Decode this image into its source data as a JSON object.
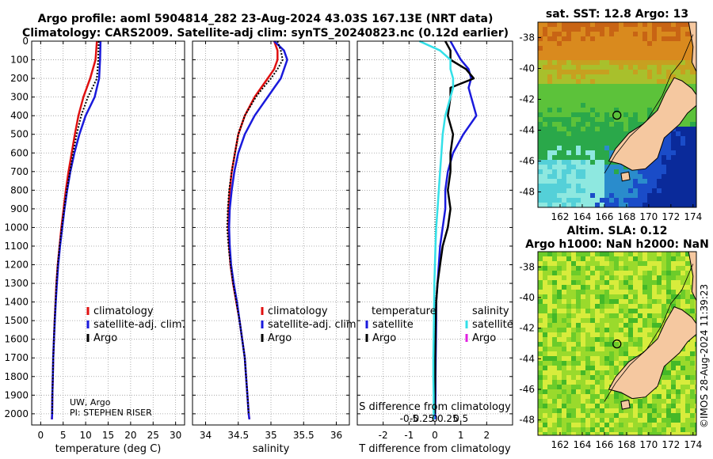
{
  "header": {
    "line1": "Argo profile: aoml 5904814_282 23-Aug-2024 43.03S 167.13E (NRT data)",
    "line2": "Climatology: CARS2009. Satellite-adj clim: synTS_20240823.nc (0.12d earlier)"
  },
  "stamp": "©IMOS 28-Aug-2024 11:39:23",
  "info": {
    "line1": "UW, Argo",
    "line2": "PI: STEPHEN RISER"
  },
  "colors": {
    "climatology": "#e01010",
    "satellite": "#1a1adc",
    "argo": "#000000",
    "sat_salinity": "#33e0e8",
    "argo_salinity": "#e020e0",
    "land": "#f5c8a0"
  },
  "chart_data": [
    {
      "type": "line",
      "name": "temperature",
      "xlabel": "temperature (deg C)",
      "ylabel": "",
      "xlim": [
        -2,
        32
      ],
      "ylim": [
        2060,
        0
      ],
      "xticks": [
        0,
        5,
        10,
        15,
        20,
        25,
        30
      ],
      "yticks": [
        0,
        100,
        200,
        300,
        400,
        500,
        600,
        700,
        800,
        900,
        1000,
        1100,
        1200,
        1300,
        1400,
        1500,
        1600,
        1700,
        1800,
        1900,
        2000
      ],
      "grid": true,
      "legend": {
        "placement": "lower-right",
        "entries": [
          "climatology",
          "satellite-adj. clim.",
          "Argo"
        ]
      },
      "series": [
        {
          "name": "climatology",
          "color": "#e01010",
          "width": 2.5,
          "dash": "",
          "depth": [
            0,
            100,
            200,
            300,
            400,
            500,
            600,
            700,
            800,
            900,
            1000,
            1100,
            1200,
            1300,
            1400,
            1500,
            1600,
            1700,
            1800,
            1900,
            2000,
            2030
          ],
          "values": [
            12.5,
            12.2,
            11.0,
            9.5,
            8.4,
            7.6,
            6.9,
            6.2,
            5.6,
            5.1,
            4.6,
            4.2,
            3.8,
            3.5,
            3.3,
            3.1,
            2.95,
            2.8,
            2.7,
            2.6,
            2.55,
            2.5
          ]
        },
        {
          "name": "satellite-adj. clim.",
          "color": "#1a1adc",
          "width": 2.5,
          "dash": "",
          "depth": [
            0,
            100,
            200,
            300,
            400,
            500,
            600,
            700,
            800,
            900,
            1000,
            1100,
            1200,
            1300,
            1400,
            1500,
            1600,
            1700,
            1800,
            1900,
            2000,
            2030
          ],
          "values": [
            13.3,
            13.2,
            13.0,
            12.0,
            10.0,
            8.6,
            7.5,
            6.6,
            5.9,
            5.3,
            4.8,
            4.3,
            3.9,
            3.6,
            3.35,
            3.15,
            2.95,
            2.8,
            2.7,
            2.6,
            2.55,
            2.5
          ]
        },
        {
          "name": "Argo",
          "color": "#000000",
          "width": 2,
          "dash": "2,2",
          "depth": [
            0,
            100,
            200,
            300,
            400,
            500,
            600,
            700,
            800,
            900,
            1000,
            1100,
            1200,
            1300,
            1400,
            1500,
            1600,
            1700,
            1800,
            1900,
            2000
          ],
          "values": [
            12.9,
            12.8,
            12.5,
            10.5,
            9.0,
            8.0,
            7.2,
            6.5,
            5.8,
            5.2,
            4.7,
            4.2,
            3.8,
            3.5,
            3.3,
            3.1,
            2.95,
            2.8,
            2.7,
            2.6,
            2.55
          ]
        }
      ]
    },
    {
      "type": "line",
      "name": "salinity",
      "xlabel": "salinity",
      "ylabel": "",
      "xlim": [
        33.8,
        36.2
      ],
      "ylim": [
        2060,
        0
      ],
      "xticks": [
        34,
        34.5,
        35,
        35.5,
        36
      ],
      "xticklabels": [
        "34",
        "34.5",
        "35",
        "35.5",
        "36"
      ],
      "grid": true,
      "legend": {
        "placement": "lower-right",
        "entries": [
          "climatology",
          "satellite-adj. clim.",
          "Argo"
        ]
      },
      "series": [
        {
          "name": "climatology",
          "color": "#e01010",
          "width": 2.5,
          "dash": "",
          "depth": [
            0,
            50,
            100,
            150,
            200,
            250,
            300,
            400,
            500,
            600,
            700,
            800,
            900,
            1000,
            1100,
            1200,
            1300,
            1400,
            1500,
            1600,
            1700,
            1800,
            1900,
            2000,
            2030
          ],
          "values": [
            35.05,
            35.1,
            35.1,
            35.05,
            34.95,
            34.85,
            34.75,
            34.6,
            34.5,
            34.45,
            34.4,
            34.37,
            34.35,
            34.35,
            34.36,
            34.38,
            34.42,
            34.47,
            34.52,
            34.56,
            34.6,
            34.62,
            34.64,
            34.66,
            34.67
          ]
        },
        {
          "name": "satellite-adj. clim.",
          "color": "#1a1adc",
          "width": 2.5,
          "dash": "",
          "depth": [
            0,
            50,
            100,
            150,
            200,
            250,
            300,
            400,
            500,
            600,
            700,
            800,
            900,
            1000,
            1100,
            1200,
            1300,
            1400,
            1500,
            1600,
            1700,
            1800,
            1900,
            2000,
            2030
          ],
          "values": [
            35.05,
            35.2,
            35.25,
            35.2,
            35.15,
            35.05,
            34.95,
            34.75,
            34.6,
            34.5,
            34.44,
            34.4,
            34.37,
            34.36,
            34.37,
            34.39,
            34.43,
            34.48,
            34.52,
            34.56,
            34.6,
            34.62,
            34.64,
            34.66,
            34.67
          ]
        },
        {
          "name": "Argo",
          "color": "#000000",
          "width": 2,
          "dash": "2,2",
          "depth": [
            0,
            50,
            100,
            150,
            200,
            250,
            300,
            400,
            500,
            600,
            700,
            800,
            900,
            1000,
            1100,
            1200,
            1300,
            1400,
            1500,
            1600,
            1700,
            1800,
            1900,
            2000
          ],
          "values": [
            35.1,
            35.15,
            35.18,
            35.1,
            35.0,
            34.88,
            34.77,
            34.6,
            34.5,
            34.45,
            34.4,
            34.36,
            34.34,
            34.33,
            34.35,
            34.38,
            34.42,
            34.47,
            34.52,
            34.56,
            34.6,
            34.62,
            34.64,
            34.66
          ]
        }
      ]
    },
    {
      "type": "line",
      "name": "difference",
      "xlabel": "T difference from climatology",
      "xlabel_top": "S difference from climatology",
      "xlim": [
        -3,
        3
      ],
      "ylim": [
        2060,
        0
      ],
      "xticks": [
        -2,
        -1,
        0,
        1,
        2
      ],
      "xticklabels": [
        "-2",
        "-1",
        "0",
        "1",
        "2"
      ],
      "sticks": [
        -1,
        -0.5,
        0,
        0.5,
        1
      ],
      "sticklabels": [
        "-0.5",
        "-0.25",
        "0",
        "0.25",
        "0.5"
      ],
      "grid": true,
      "legend_temperature": {
        "title": "temperature",
        "entries": [
          "satellite",
          "Argo"
        ]
      },
      "legend_salinity": {
        "title": "salinity",
        "entries": [
          "satellite",
          "Argo"
        ]
      },
      "series": [
        {
          "name": "T satellite",
          "color": "#1a1adc",
          "width": 2.5,
          "dash": "",
          "depth": [
            0,
            50,
            100,
            150,
            200,
            250,
            300,
            400,
            500,
            600,
            700,
            800,
            900,
            1000,
            1100,
            1200,
            1300,
            1400,
            1500,
            1600,
            1700,
            1800,
            1900,
            2000,
            2030
          ],
          "values": [
            0.6,
            0.8,
            1.0,
            1.3,
            1.4,
            1.3,
            1.4,
            1.6,
            1.1,
            0.7,
            0.5,
            0.4,
            0.4,
            0.3,
            0.2,
            0.15,
            0.1,
            0.05,
            0.05,
            0.04,
            0.03,
            0.02,
            0.02,
            0.01,
            0.0
          ]
        },
        {
          "name": "T Argo",
          "color": "#000000",
          "width": 2.5,
          "dash": "",
          "depth": [
            0,
            50,
            100,
            150,
            200,
            250,
            300,
            400,
            500,
            600,
            700,
            800,
            900,
            1000,
            1100,
            1200,
            1300,
            1400,
            1500,
            1600,
            1700,
            1800,
            1900,
            2000
          ],
          "values": [
            0.4,
            0.6,
            0.6,
            1.2,
            1.5,
            0.6,
            0.6,
            0.5,
            0.7,
            0.6,
            0.6,
            0.5,
            0.6,
            0.5,
            0.3,
            0.2,
            0.1,
            0.05,
            0.03,
            0.02,
            0.01,
            0.01,
            0.0,
            0.0
          ]
        },
        {
          "name": "S satellite",
          "color": "#33e0e8",
          "width": 2.5,
          "dash": "",
          "depth": [
            0,
            50,
            100,
            150,
            200,
            250,
            300,
            400,
            500,
            600,
            700,
            800,
            900,
            1000,
            1100,
            1200,
            1300,
            1400,
            1500,
            1600,
            1700,
            1800,
            1900,
            2000,
            2030
          ],
          "values": [
            -0.6,
            0.2,
            0.6,
            0.6,
            0.7,
            0.7,
            0.6,
            0.4,
            0.3,
            0.25,
            0.2,
            0.15,
            0.1,
            0.05,
            0.02,
            0.0,
            -0.02,
            -0.03,
            -0.04,
            -0.05,
            -0.06,
            -0.06,
            -0.05,
            -0.05,
            -0.05
          ]
        }
      ]
    },
    {
      "type": "heatmap",
      "name": "sst-map",
      "title": "sat. SST: 12.8 Argo: 13",
      "xticks": [
        162,
        164,
        166,
        168,
        170,
        172,
        174
      ],
      "yticks": [
        -38,
        -40,
        -42,
        -44,
        -46,
        -48
      ],
      "xlim": [
        160,
        174.3
      ],
      "ylim": [
        -49,
        -37
      ],
      "marker": {
        "lon": 167.13,
        "lat": -43.03
      }
    },
    {
      "type": "heatmap",
      "name": "sla-map",
      "title": "Altim. SLA: 0.12",
      "subtitle": "Argo h1000: NaN h2000: NaN",
      "xticks": [
        162,
        164,
        166,
        168,
        170,
        172,
        174
      ],
      "yticks": [
        -38,
        -40,
        -42,
        -44,
        -46,
        -48
      ],
      "xlim": [
        160,
        174.3
      ],
      "ylim": [
        -49,
        -37
      ],
      "marker": {
        "lon": 167.13,
        "lat": -43.03
      }
    }
  ]
}
